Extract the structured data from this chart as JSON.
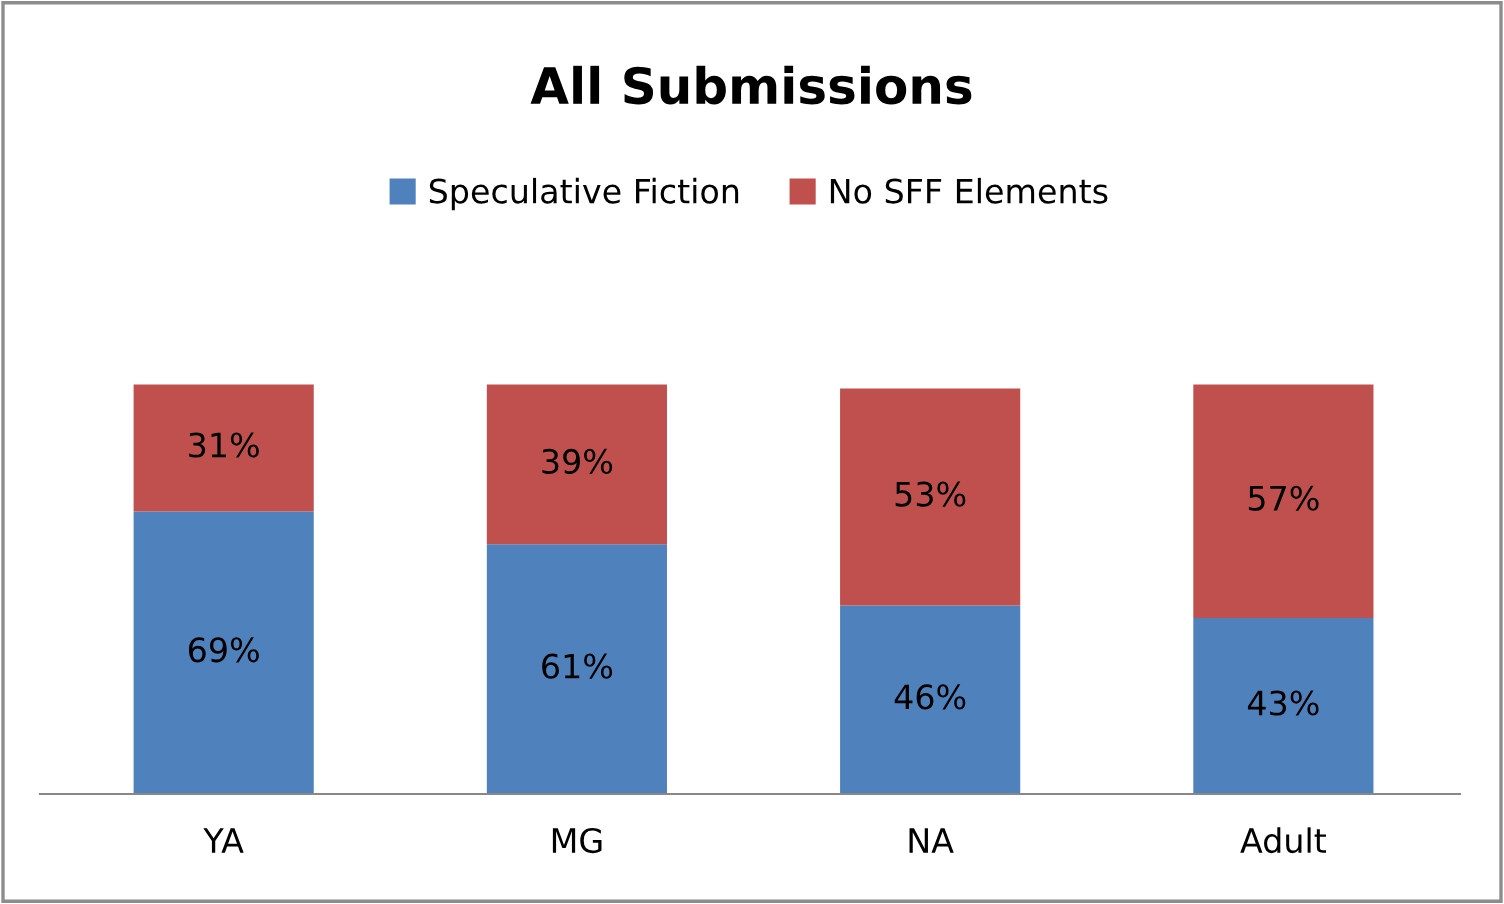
{
  "chart_data": {
    "type": "bar",
    "title": "All Submissions",
    "stacked": true,
    "legend": "top",
    "grid": false,
    "categories": [
      "YA",
      "MG",
      "NA",
      "Adult"
    ],
    "series": [
      {
        "name": "Speculative Fiction",
        "color": "#4f81bd",
        "values": [
          69,
          61,
          46,
          43
        ],
        "value_labels": [
          "69%",
          "61%",
          "46%",
          "43%"
        ]
      },
      {
        "name": "No SFF Elements",
        "color": "#c0504d",
        "values": [
          31,
          39,
          53,
          57
        ],
        "value_labels": [
          "31%",
          "39%",
          "53%",
          "57%"
        ]
      }
    ]
  }
}
